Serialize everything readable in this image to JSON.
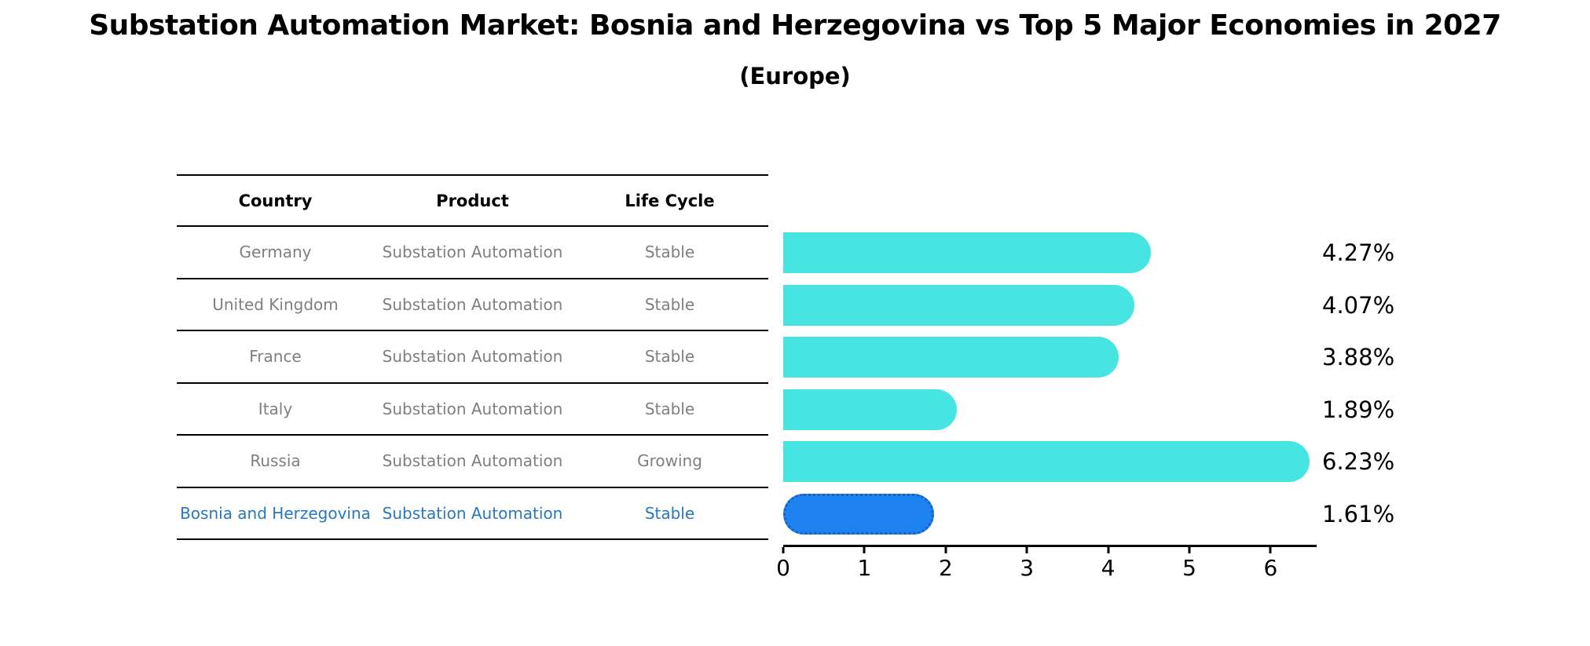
{
  "title": "Substation Automation Market: Bosnia and Herzegovina vs Top 5 Major Economies in 2027",
  "subtitle": "(Europe)",
  "table": {
    "headers": [
      "Country",
      "Product",
      "Life Cycle"
    ],
    "rows": [
      {
        "country": "Germany",
        "product": "Substation Automation",
        "life_cycle": "Stable",
        "highlight": false
      },
      {
        "country": "United Kingdom",
        "product": "Substation Automation",
        "life_cycle": "Stable",
        "highlight": false
      },
      {
        "country": "France",
        "product": "Substation Automation",
        "life_cycle": "Stable",
        "highlight": false
      },
      {
        "country": "Italy",
        "product": "Substation Automation",
        "life_cycle": "Stable",
        "highlight": false
      },
      {
        "country": "Russia",
        "product": "Substation Automation",
        "life_cycle": "Growing",
        "highlight": false
      },
      {
        "country": "Bosnia and Herzegovina",
        "product": "Substation Automation",
        "life_cycle": "Stable",
        "highlight": true
      }
    ]
  },
  "chart_data": {
    "type": "bar",
    "orientation": "horizontal",
    "title": "Substation Automation Market: Bosnia and Herzegovina vs Top 5 Major Economies in 2027",
    "subtitle": "(Europe)",
    "categories": [
      "Germany",
      "United Kingdom",
      "France",
      "Italy",
      "Russia",
      "Bosnia and Herzegovina"
    ],
    "values": [
      4.27,
      4.07,
      3.88,
      1.89,
      6.23,
      1.61
    ],
    "value_labels": [
      "4.27%",
      "4.07%",
      "3.88%",
      "1.89%",
      "6.23%",
      "1.61%"
    ],
    "xlabel": "",
    "ylabel": "",
    "xlim": [
      0,
      6.57
    ],
    "x_ticks": [
      "0",
      "1",
      "2",
      "3",
      "4",
      "5",
      "6"
    ],
    "grid": "off",
    "legend": "none",
    "highlight": {
      "category": "Bosnia and Herzegovina",
      "index": 5
    },
    "colors": {
      "bar": "#46e5e2",
      "highlight_bar": "#1e82f0",
      "highlight_border": "#1560c4",
      "highlight_text": "#2878be",
      "row_text": "#7f7f7f",
      "axis": "#000000",
      "label_text": "#000000"
    }
  }
}
